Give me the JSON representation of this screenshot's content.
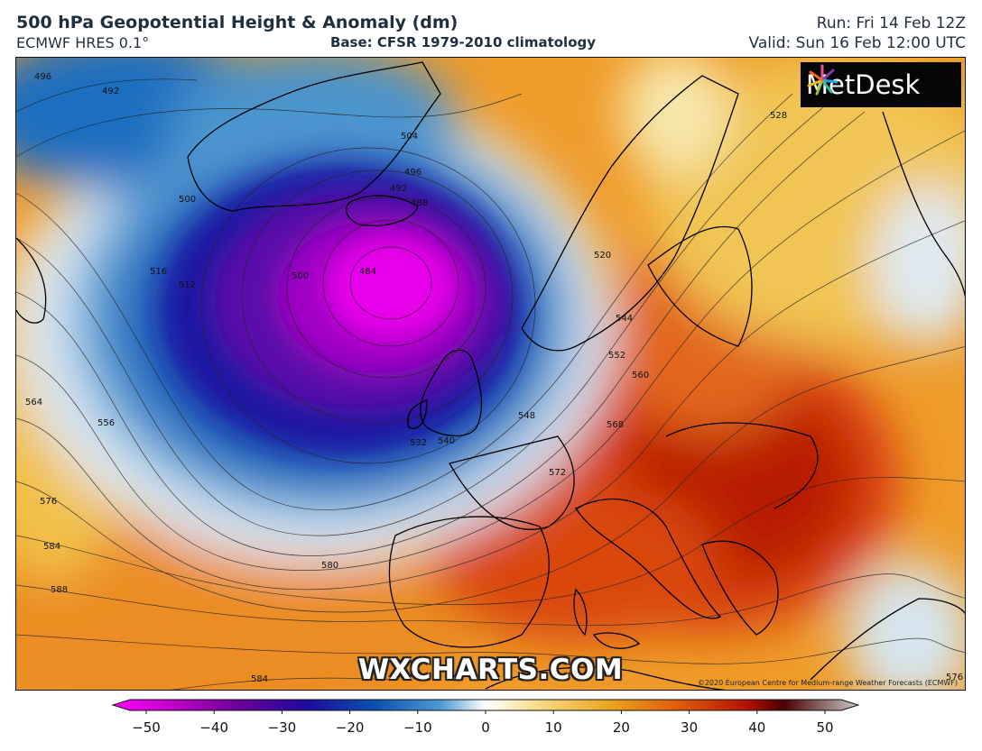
{
  "header": {
    "title": "500 hPa Geopotential Height & Anomaly (dm)",
    "model": "ECMWF HRES 0.1°",
    "base": "Base: CFSR 1979-2010 climatology",
    "run": "Run: Fri 14 Feb 12Z",
    "valid": "Valid: Sun 16 Feb 12:00 UTC"
  },
  "logo": {
    "text": "MetDesk",
    "icon": "metdesk-star-icon"
  },
  "watermark": "WXCHARTS.COM",
  "copyright": "©2020 European Centre for Medium-range Weather Forecasts (ECMWF)",
  "contour_labels": [
    "496",
    "492",
    "504",
    "496",
    "492",
    "488",
    "500",
    "516",
    "512",
    "500",
    "484",
    "520",
    "528",
    "544",
    "552",
    "560",
    "564",
    "556",
    "548",
    "532",
    "540",
    "568",
    "572",
    "576",
    "584",
    "580",
    "588",
    "584",
    "576"
  ],
  "colorbar": {
    "ticks": [
      "−50",
      "−40",
      "−30",
      "−20",
      "−10",
      "0",
      "10",
      "20",
      "30",
      "40",
      "50"
    ],
    "stops": [
      "#ff00ff",
      "#c000c8",
      "#6a0099",
      "#1e0a9e",
      "#0c4fb0",
      "#4d9ad2",
      "#ffffff",
      "#f6d779",
      "#eaa21b",
      "#de5a0c",
      "#b51105",
      "#4a0000",
      "#c8c8c8"
    ]
  },
  "colors": {
    "deep_low": "#f000f0",
    "purple": "#6a00a8",
    "navy": "#1a1090",
    "blue": "#1f6ec0",
    "light_blue": "#a7d3ee",
    "yellow": "#f3d46a",
    "orange": "#ea8a1f",
    "red": "#c71e0a"
  }
}
